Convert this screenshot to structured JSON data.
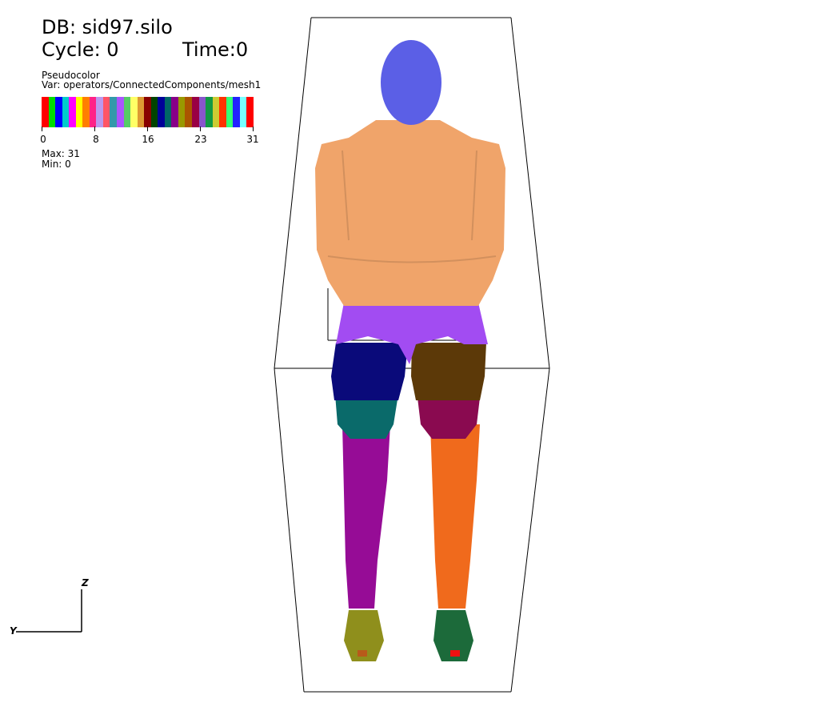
{
  "header": {
    "db": "DB: sid97.silo",
    "cycle": "Cycle: 0",
    "time": "Time:0"
  },
  "legend": {
    "plot_type": "Pseudocolor",
    "variable": "Var: operators/ConnectedComponents/mesh1",
    "ticks": [
      "0",
      "8",
      "16",
      "23",
      "31"
    ],
    "max": "Max: 31",
    "min": "Min:  0",
    "colors": [
      "#ff0000",
      "#00dd00",
      "#0000ff",
      "#00cccc",
      "#ff00ff",
      "#ffff00",
      "#ff7f00",
      "#ff2288",
      "#bb99ee",
      "#ff5566",
      "#3399aa",
      "#aa55ff",
      "#55cc66",
      "#ffff66",
      "#dd9933",
      "#880000",
      "#004400",
      "#000099",
      "#006666",
      "#880088",
      "#999900",
      "#aa5500",
      "#990044",
      "#8855cc",
      "#119944",
      "#cccc33",
      "#ff3300",
      "#33ff77",
      "#2222ff",
      "#77ffff",
      "#ff0000"
    ]
  },
  "axes": {
    "vertical": "Z",
    "horizontal": "Y"
  },
  "figure": {
    "colors": {
      "head": "#5b5fe6",
      "torso": "#f0a46a",
      "pelvis": "#a24cf2",
      "thigh_left": "#0a0a7a",
      "thigh_right": "#5c3908",
      "knee_left": "#0a6a6a",
      "knee_right": "#8a0a50",
      "shin_left": "#960c96",
      "shin_right": "#f06a1c",
      "foot_left": "#8f8f1c",
      "foot_right": "#1c6a3a"
    }
  }
}
